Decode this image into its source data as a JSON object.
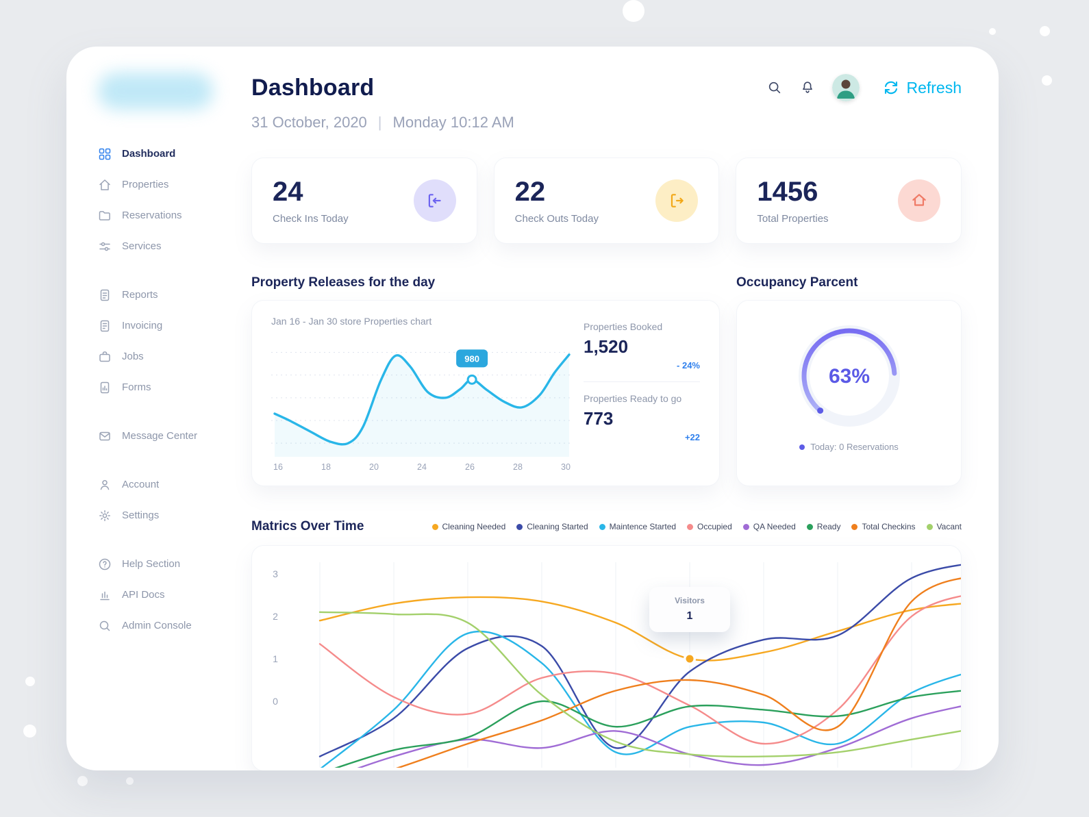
{
  "header": {
    "title": "Dashboard",
    "date": "31 October, 2020",
    "separator": "|",
    "datetime": "Monday 10:12 AM",
    "refresh_label": "Refresh"
  },
  "sidebar": {
    "groups": [
      {
        "items": [
          {
            "label": "Dashboard",
            "icon": "grid-icon",
            "active": true
          },
          {
            "label": "Properties",
            "icon": "home-icon"
          },
          {
            "label": "Reservations",
            "icon": "folder-icon"
          },
          {
            "label": "Services",
            "icon": "sliders-icon"
          }
        ]
      },
      {
        "items": [
          {
            "label": "Reports",
            "icon": "clipboard-icon"
          },
          {
            "label": "Invoicing",
            "icon": "invoice-icon"
          },
          {
            "label": "Jobs",
            "icon": "briefcase-icon"
          },
          {
            "label": "Forms",
            "icon": "form-chart-icon"
          }
        ]
      },
      {
        "items": [
          {
            "label": "Message Center",
            "icon": "mail-icon"
          }
        ]
      },
      {
        "items": [
          {
            "label": "Account",
            "icon": "user-icon"
          },
          {
            "label": "Settings",
            "icon": "gear-icon"
          }
        ]
      },
      {
        "items": [
          {
            "label": "Help Section",
            "icon": "help-icon"
          },
          {
            "label": "API Docs",
            "icon": "bar-chart-icon"
          },
          {
            "label": "Admin Console",
            "icon": "console-icon"
          }
        ]
      }
    ]
  },
  "stats": [
    {
      "value": "24",
      "label": "Check Ins Today",
      "icon": "check-in-arrow-icon",
      "accent": "#6c63f0",
      "bg": "#e0defb"
    },
    {
      "value": "22",
      "label": "Check Outs Today",
      "icon": "check-out-arrow-icon",
      "accent": "#f2a818",
      "bg": "#fdeec5"
    },
    {
      "value": "1456",
      "label": "Total Properties",
      "icon": "home-icon",
      "accent": "#ef7a66",
      "bg": "#fcd9d3"
    }
  ],
  "property_releases": {
    "section_title": "Property Releases for the day",
    "booked_label": "Properties Booked",
    "booked_value": "1,520",
    "booked_delta": "- 24%",
    "ready_label": "Properties Ready to go",
    "ready_value": "773",
    "ready_delta": "+22",
    "delta_color": "#2f80ed"
  },
  "occupancy": {
    "section_title": "Occupancy Parcent",
    "percent": "63%",
    "legend_label": "Today: 0 Reservations",
    "accent": "#5d5ce6"
  },
  "metrics": {
    "section_title": "Matrics Over Time"
  },
  "chart_data": [
    {
      "type": "line",
      "title": "Jan 16 - Jan 30 store Properties chart",
      "color": "#29b6e8",
      "ylim": [
        640,
        1165
      ],
      "gridlines": [
        700,
        800,
        900,
        1000,
        1100
      ],
      "x_labels": [
        "16",
        "18",
        "20",
        "24",
        "26",
        "28",
        "30"
      ],
      "points": [
        {
          "x": 0,
          "v": 830
        },
        {
          "x": 0.05,
          "v": 800
        },
        {
          "x": 0.12,
          "v": 752
        },
        {
          "x": 0.19,
          "v": 706
        },
        {
          "x": 0.25,
          "v": 700
        },
        {
          "x": 0.3,
          "v": 772
        },
        {
          "x": 0.36,
          "v": 975
        },
        {
          "x": 0.41,
          "v": 1085
        },
        {
          "x": 0.46,
          "v": 1038
        },
        {
          "x": 0.52,
          "v": 925
        },
        {
          "x": 0.58,
          "v": 900
        },
        {
          "x": 0.63,
          "v": 938
        },
        {
          "x": 0.67,
          "v": 980
        },
        {
          "x": 0.72,
          "v": 935
        },
        {
          "x": 0.78,
          "v": 882
        },
        {
          "x": 0.84,
          "v": 858
        },
        {
          "x": 0.9,
          "v": 912
        },
        {
          "x": 0.95,
          "v": 1010
        },
        {
          "x": 1,
          "v": 1090
        }
      ],
      "marker": {
        "x": 0.67,
        "v": 980,
        "label": "980"
      }
    },
    {
      "type": "line-multi",
      "ylim": [
        -1.3,
        3.4
      ],
      "y_ticks": [
        3,
        2,
        1,
        0
      ],
      "series": [
        {
          "name": "Cleaning Needed",
          "color": "#f6a821",
          "values": [
            1.9,
            2.3,
            2.45,
            2.35,
            1.85,
            1.0,
            1.15,
            1.65,
            2.15,
            2.35
          ]
        },
        {
          "name": "Cleaning Started",
          "color": "#3b4ba8",
          "values": [
            -1.3,
            -0.4,
            1.25,
            1.3,
            -1.1,
            0.7,
            1.45,
            1.55,
            2.9,
            3.3
          ]
        },
        {
          "name": "Maintence Started",
          "color": "#29b6e8",
          "values": [
            -1.6,
            -0.2,
            1.6,
            0.9,
            -1.2,
            -0.6,
            -0.5,
            -1.0,
            0.2,
            0.8
          ]
        },
        {
          "name": "Occupied",
          "color": "#f58b8b",
          "values": [
            1.35,
            0.1,
            -0.3,
            0.55,
            0.65,
            -0.1,
            -1.0,
            -0.2,
            2.0,
            2.6
          ]
        },
        {
          "name": "QA Needed",
          "color": "#a06cd5",
          "values": [
            -1.9,
            -1.3,
            -0.9,
            -1.1,
            -0.7,
            -1.25,
            -1.5,
            -1.1,
            -0.4,
            0.0
          ]
        },
        {
          "name": "Ready",
          "color": "#2ba05c",
          "values": [
            -1.7,
            -1.15,
            -0.85,
            0.0,
            -0.6,
            -0.12,
            -0.2,
            -0.35,
            0.1,
            0.3
          ]
        },
        {
          "name": "Total Checkins",
          "color": "#ef7f1d",
          "values": [
            -2.1,
            -1.6,
            -1.0,
            -0.45,
            0.25,
            0.5,
            0.15,
            -0.6,
            2.35,
            3.0
          ]
        },
        {
          "name": "Vacant",
          "color": "#a3d06b",
          "values": [
            2.1,
            2.05,
            1.85,
            0.15,
            -0.95,
            -1.25,
            -1.3,
            -1.2,
            -0.9,
            -0.6
          ]
        }
      ],
      "tooltip": {
        "title": "Visitors",
        "value": "1",
        "series": "Cleaning Needed",
        "x": 5,
        "v": 1
      }
    }
  ]
}
